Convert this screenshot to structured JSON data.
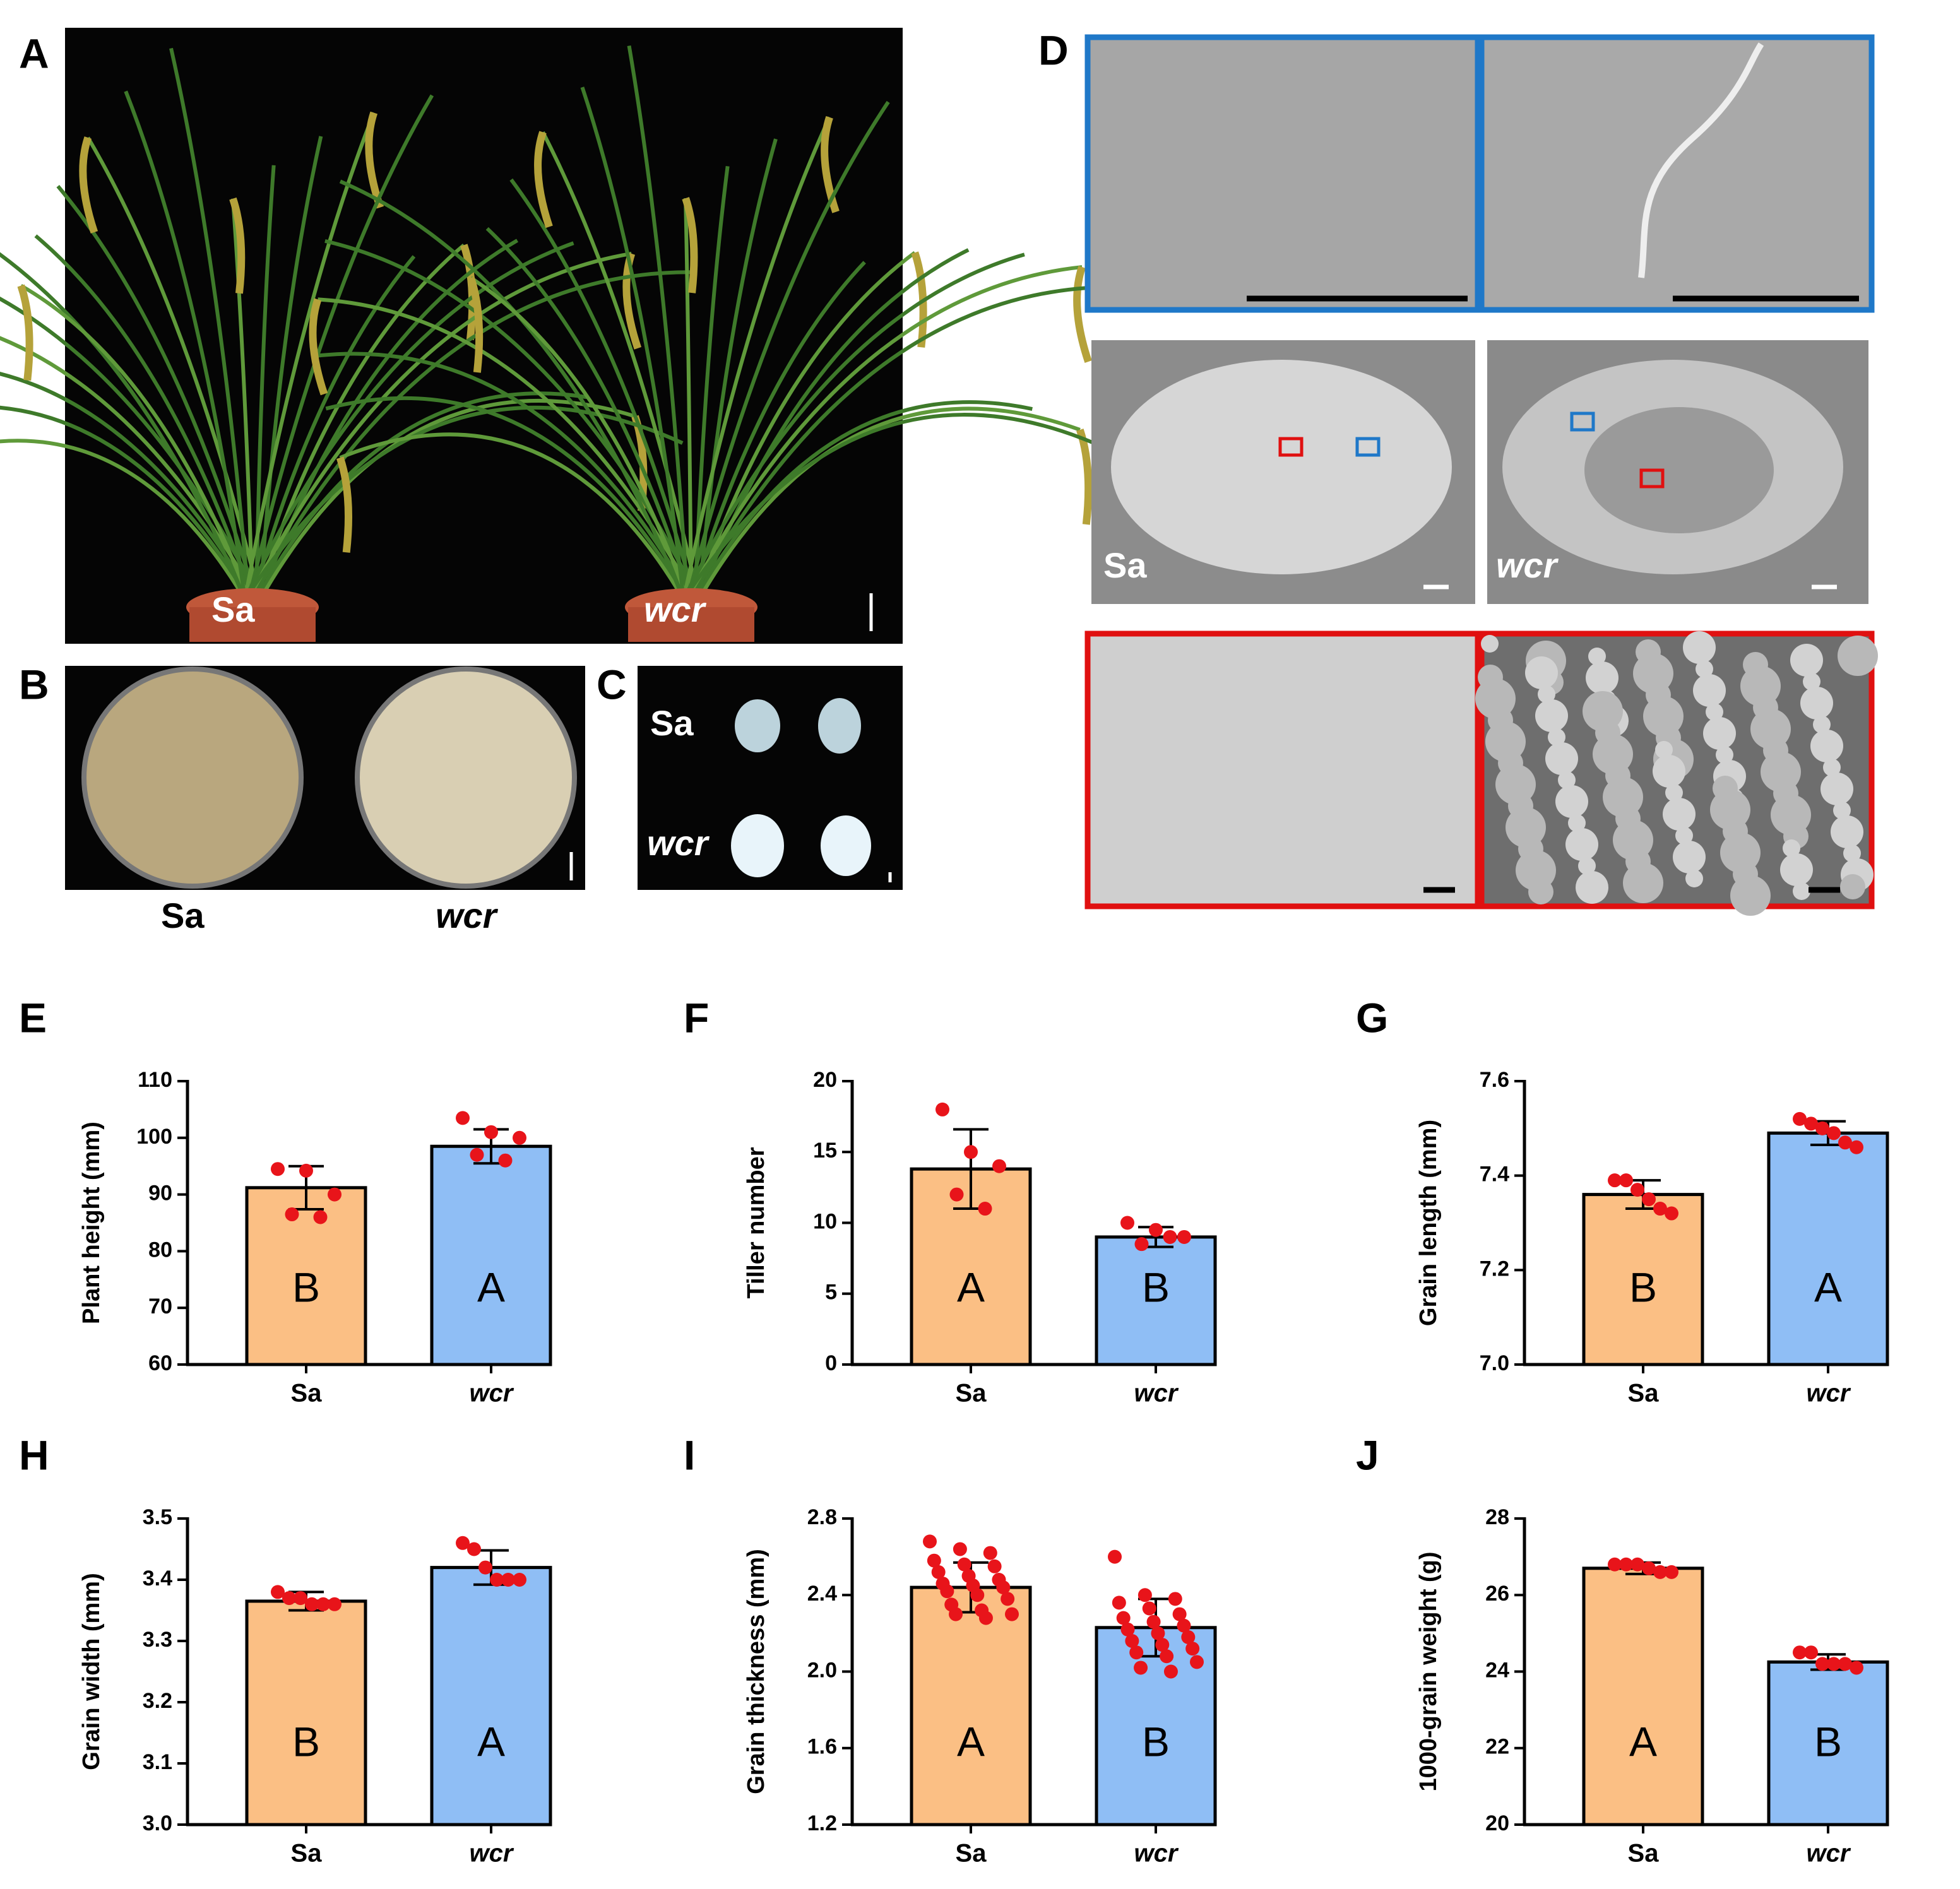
{
  "panels": {
    "A": {
      "label": "A",
      "genotypes": [
        "Sa",
        "wcr"
      ]
    },
    "B": {
      "label": "B",
      "genotypes": [
        "Sa",
        "wcr"
      ]
    },
    "C": {
      "label": "C",
      "genotypes": [
        "Sa",
        "wcr"
      ]
    },
    "D": {
      "label": "D",
      "genotypes": [
        "Sa",
        "wcr"
      ]
    }
  },
  "chart_data": [
    {
      "type": "bar",
      "panel": "E",
      "ylabel": "Plant height (mm)",
      "categories": [
        "Sa",
        "wcr"
      ],
      "colors": [
        "#fbbf84",
        "#8fbef5"
      ],
      "values": [
        91.2,
        98.5
      ],
      "errors": [
        3.8,
        3.0
      ],
      "points": [
        [
          94.5,
          94.2,
          90,
          86.5,
          86
        ],
        [
          103.5,
          101,
          100,
          97,
          96
        ]
      ],
      "point_color": "#e8141a",
      "letters": [
        "B",
        "A"
      ],
      "ylim": [
        60,
        110
      ],
      "yticks": [
        60,
        70,
        80,
        90,
        100,
        110
      ]
    },
    {
      "type": "bar",
      "panel": "F",
      "ylabel": "Tiller number",
      "categories": [
        "Sa",
        "wcr"
      ],
      "colors": [
        "#fbbf84",
        "#8fbef5"
      ],
      "values": [
        13.8,
        9
      ],
      "errors": [
        2.8,
        0.7
      ],
      "points": [
        [
          18,
          15,
          14,
          12,
          11
        ],
        [
          10,
          9.5,
          9,
          8.5,
          9
        ]
      ],
      "point_color": "#e8141a",
      "letters": [
        "A",
        "B"
      ],
      "ylim": [
        0,
        20
      ],
      "yticks": [
        0,
        5,
        10,
        15,
        20
      ]
    },
    {
      "type": "bar",
      "panel": "G",
      "ylabel": "Grain length (mm)",
      "categories": [
        "Sa",
        "wcr"
      ],
      "colors": [
        "#fbbf84",
        "#8fbef5"
      ],
      "values": [
        7.36,
        7.49
      ],
      "errors": [
        0.03,
        0.025
      ],
      "points": [
        [
          7.39,
          7.39,
          7.37,
          7.35,
          7.33,
          7.32
        ],
        [
          7.52,
          7.51,
          7.5,
          7.49,
          7.47,
          7.46
        ]
      ],
      "point_color": "#e8141a",
      "letters": [
        "B",
        "A"
      ],
      "ylim": [
        7.0,
        7.6
      ],
      "yticks": [
        {
          "value": 7.0,
          "label": "7.0"
        },
        7.2,
        7.4,
        7.6
      ]
    },
    {
      "type": "bar",
      "panel": "H",
      "ylabel": "Grain width (mm)",
      "categories": [
        "Sa",
        "wcr"
      ],
      "colors": [
        "#fbbf84",
        "#8fbef5"
      ],
      "values": [
        3.365,
        3.42
      ],
      "errors": [
        0.015,
        0.028
      ],
      "points": [
        [
          3.38,
          3.37,
          3.37,
          3.36,
          3.36,
          3.36
        ],
        [
          3.46,
          3.45,
          3.42,
          3.4,
          3.4,
          3.4
        ]
      ],
      "point_color": "#e8141a",
      "letters": [
        "B",
        "A"
      ],
      "ylim": [
        3.0,
        3.5
      ],
      "yticks": [
        {
          "value": 3.0,
          "label": "3.0"
        },
        3.1,
        3.2,
        3.3,
        3.4,
        3.5
      ]
    },
    {
      "type": "bar",
      "panel": "I",
      "ylabel": "Grain thickness (mm)",
      "categories": [
        "Sa",
        "wcr"
      ],
      "colors": [
        "#fbbf84",
        "#8fbef5"
      ],
      "values": [
        2.44,
        2.23
      ],
      "errors": [
        0.13,
        0.15
      ],
      "points": [
        [
          2.68,
          2.64,
          2.62,
          2.58,
          2.56,
          2.55,
          2.52,
          2.5,
          2.48,
          2.46,
          2.45,
          2.44,
          2.42,
          2.4,
          2.38,
          2.35,
          2.32,
          2.3,
          2.3,
          2.28
        ],
        [
          2.6,
          2.4,
          2.38,
          2.36,
          2.33,
          2.3,
          2.28,
          2.26,
          2.24,
          2.22,
          2.2,
          2.18,
          2.16,
          2.14,
          2.12,
          2.1,
          2.08,
          2.05,
          2.02,
          2.0
        ]
      ],
      "point_color": "#e8141a",
      "letters": [
        "A",
        "B"
      ],
      "ylim": [
        1.2,
        2.8
      ],
      "yticks": [
        1.2,
        1.6,
        {
          "value": 2.0,
          "label": "2.0"
        },
        2.4,
        2.8
      ]
    },
    {
      "type": "bar",
      "panel": "J",
      "ylabel": "1000-grain weight (g)",
      "categories": [
        "Sa",
        "wcr"
      ],
      "colors": [
        "#fbbf84",
        "#8fbef5"
      ],
      "values": [
        26.7,
        24.25
      ],
      "errors": [
        0.15,
        0.2
      ],
      "points": [
        [
          26.8,
          26.8,
          26.8,
          26.7,
          26.6,
          26.6
        ],
        [
          24.5,
          24.5,
          24.2,
          24.2,
          24.2,
          24.1
        ]
      ],
      "point_color": "#e8141a",
      "letters": [
        "A",
        "B"
      ],
      "ylim": [
        20,
        28
      ],
      "yticks": [
        20,
        22,
        24,
        26,
        28
      ]
    }
  ]
}
